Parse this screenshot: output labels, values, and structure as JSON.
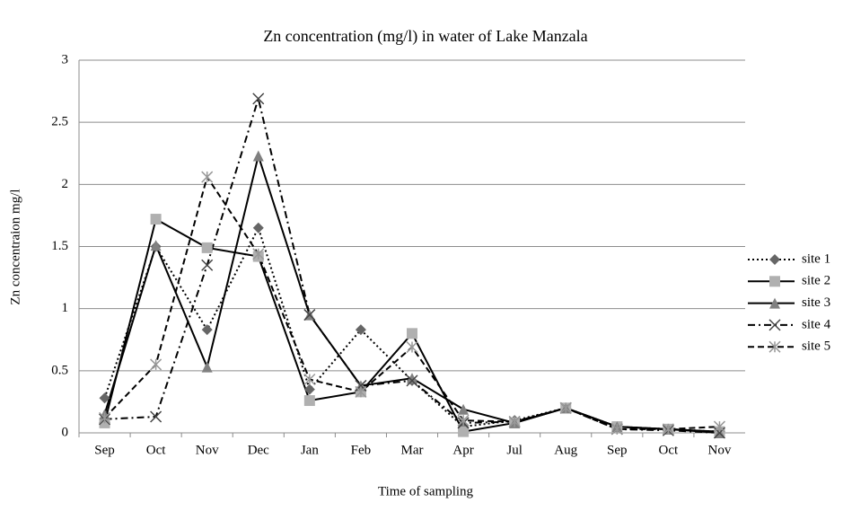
{
  "chart_data": {
    "type": "line",
    "title": "Zn concentration  (mg/l) in water of Lake Manzala",
    "x_label": "Time of sampling",
    "y_label": "Zn concentraion mg/l",
    "categories": [
      "Sep",
      "Oct",
      "Nov",
      "Dec",
      "Jan",
      "Feb",
      "Mar",
      "Apr",
      "Jul",
      "Aug",
      "Sep",
      "Oct",
      "Nov"
    ],
    "series": [
      {
        "name": "site 1",
        "color": "#000000",
        "marker_color": "#666666",
        "dash": "dotted",
        "marker": "diamond",
        "values": [
          0.28,
          1.5,
          0.83,
          1.65,
          0.35,
          0.83,
          0.42,
          0.05,
          0.1,
          0.2,
          0.05,
          0.03,
          0.01
        ]
      },
      {
        "name": "site 2",
        "color": "#000000",
        "marker_color": "#b0b0b0",
        "dash": "solid",
        "marker": "square",
        "values": [
          0.08,
          1.72,
          1.49,
          1.42,
          0.26,
          0.33,
          0.8,
          0.01,
          0.08,
          0.2,
          0.05,
          0.03,
          0.01
        ]
      },
      {
        "name": "site 3",
        "color": "#000000",
        "marker_color": "#808080",
        "dash": "solid",
        "marker": "triangle",
        "values": [
          0.15,
          1.51,
          0.53,
          2.23,
          0.95,
          0.38,
          0.44,
          0.19,
          0.08,
          0.2,
          0.05,
          0.03,
          0
        ]
      },
      {
        "name": "site 4",
        "color": "#000000",
        "marker_color": "#444444",
        "dash": "dashdot",
        "marker": "x",
        "values": [
          0.11,
          0.13,
          1.35,
          2.69,
          0.95,
          0.38,
          0.42,
          0.08,
          0.09,
          0.2,
          0.03,
          0.02,
          0
        ]
      },
      {
        "name": "site 5",
        "color": "#000000",
        "marker_color": "#999999",
        "dash": "dashed",
        "marker": "star",
        "values": [
          0.12,
          0.55,
          2.06,
          1.44,
          0.43,
          0.33,
          0.69,
          0.1,
          0.09,
          0.2,
          0.03,
          0.03,
          0.05
        ]
      }
    ],
    "ylim": [
      0,
      3
    ],
    "yticks": [
      0,
      0.5,
      1,
      1.5,
      2,
      2.5,
      3
    ],
    "grid": true,
    "legend": "right"
  }
}
